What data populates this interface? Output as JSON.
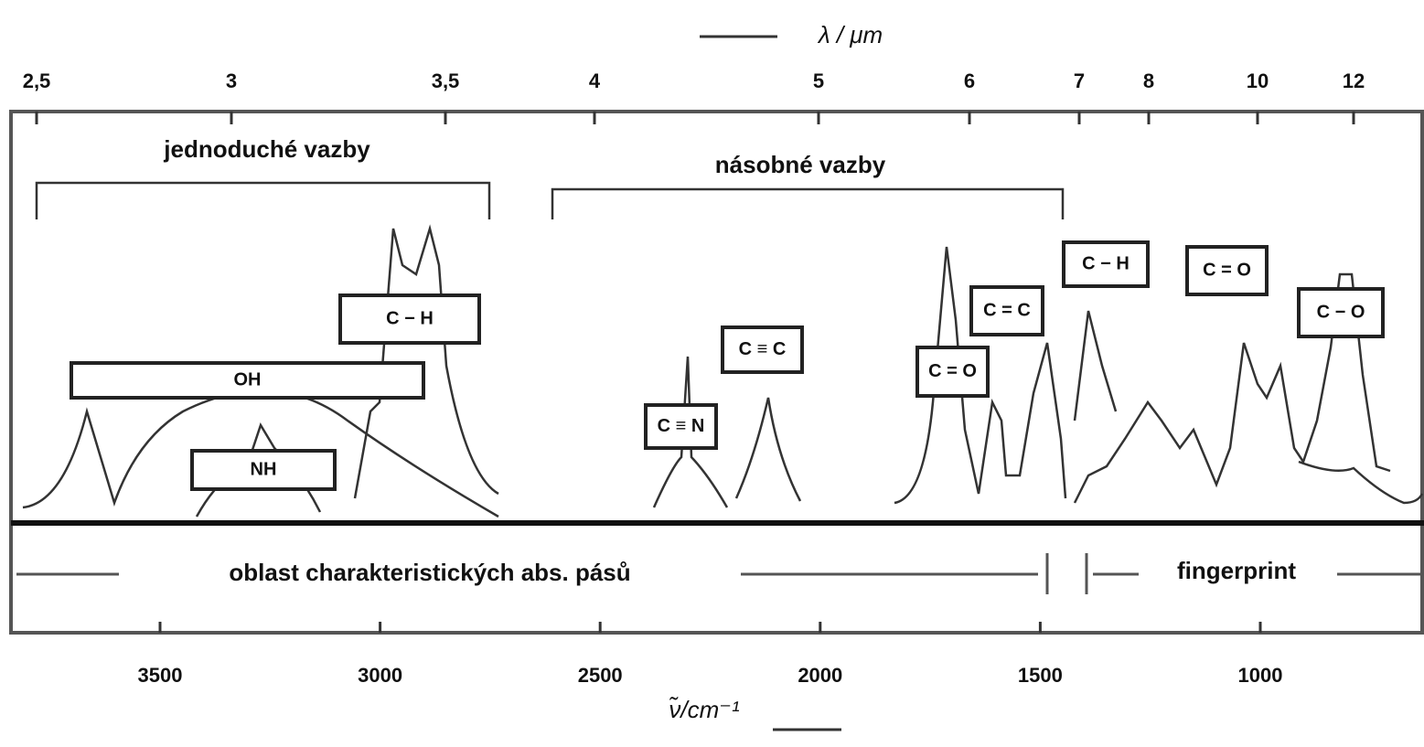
{
  "top_axis": {
    "label": "λ / μm",
    "ticks": [
      {
        "value": 2.5,
        "label": "2,5"
      },
      3,
      {
        "value": 3.5,
        "label": "3,5"
      },
      4,
      5,
      6,
      7,
      8,
      10,
      12
    ]
  },
  "bottom_axis": {
    "label": "ν̃/cm⁻¹",
    "ticks": [
      3500,
      3000,
      2500,
      2000,
      1500,
      1000
    ]
  },
  "groups": {
    "single": "jednoduché vazby",
    "multiple": "násobné vazby"
  },
  "bands": [
    "C − H",
    "OH",
    "NH",
    "C ≡ N",
    "C ≡ C",
    "C = O",
    "C = C",
    "C − H",
    "C = O",
    "C − O"
  ],
  "regions": {
    "characteristic": "oblast charakteristických abs. pásů",
    "fingerprint": "fingerprint"
  }
}
